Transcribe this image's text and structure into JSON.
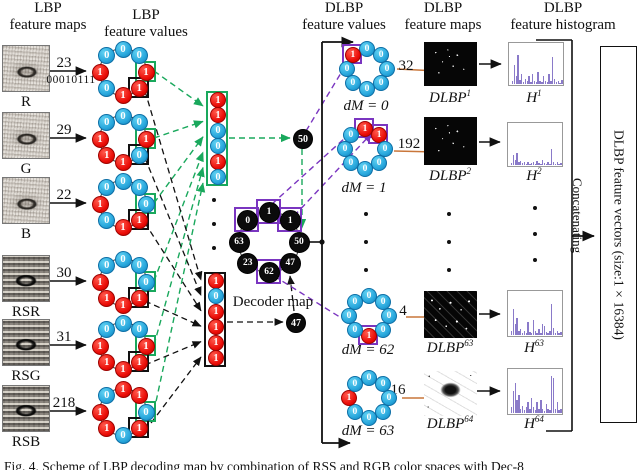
{
  "figure": {
    "headers": [
      {
        "line1": "LBP",
        "line2": "feature maps"
      },
      {
        "line1": "LBP",
        "line2": "feature values"
      },
      {
        "line1": "DLBP",
        "line2": "feature values"
      },
      {
        "line1": "DLBP",
        "line2": "feature maps"
      },
      {
        "line1": "DLBP",
        "line2": "feature histogram"
      }
    ],
    "lbp_rows": [
      {
        "map_label": "R",
        "value": "23",
        "binary": "00010111",
        "bits": [
          {
            "v": "0"
          },
          {
            "v": "0"
          },
          {
            "v": "1",
            "box": "green"
          },
          {
            "v": "1",
            "box": "black"
          },
          {
            "v": "1"
          },
          {
            "v": "0"
          },
          {
            "v": "1"
          },
          {
            "v": "0"
          }
        ]
      },
      {
        "map_label": "G",
        "value": "29",
        "bits": [
          {
            "v": "0"
          },
          {
            "v": "0"
          },
          {
            "v": "1",
            "box": "green"
          },
          {
            "v": "0",
            "box": "black"
          },
          {
            "v": "1"
          },
          {
            "v": "1"
          },
          {
            "v": "1"
          },
          {
            "v": "0"
          }
        ]
      },
      {
        "map_label": "B",
        "value": "22",
        "bits": [
          {
            "v": "0"
          },
          {
            "v": "0"
          },
          {
            "v": "0",
            "box": "green"
          },
          {
            "v": "1",
            "box": "black"
          },
          {
            "v": "1"
          },
          {
            "v": "0"
          },
          {
            "v": "1"
          },
          {
            "v": "0"
          }
        ]
      },
      {
        "map_label": "RSR",
        "value": "30",
        "bits": [
          {
            "v": "0"
          },
          {
            "v": "0"
          },
          {
            "v": "0",
            "box": "green"
          },
          {
            "v": "1",
            "box": "black"
          },
          {
            "v": "1"
          },
          {
            "v": "1"
          },
          {
            "v": "1"
          },
          {
            "v": "0"
          }
        ]
      },
      {
        "map_label": "RSG",
        "value": "31",
        "bits": [
          {
            "v": "0"
          },
          {
            "v": "0"
          },
          {
            "v": "1",
            "box": "green"
          },
          {
            "v": "1",
            "box": "black"
          },
          {
            "v": "1"
          },
          {
            "v": "1"
          },
          {
            "v": "1"
          },
          {
            "v": "0"
          }
        ]
      },
      {
        "map_label": "RSB",
        "value": "218",
        "bits": [
          {
            "v": "1"
          },
          {
            "v": "1"
          },
          {
            "v": "0",
            "box": "green"
          },
          {
            "v": "1",
            "box": "black"
          },
          {
            "v": "0"
          },
          {
            "v": "1"
          },
          {
            "v": "1"
          },
          {
            "v": "0"
          }
        ]
      }
    ],
    "green_column": [
      "1",
      "1",
      "0",
      "0",
      "1",
      "0"
    ],
    "black_column": [
      "1",
      "0",
      "1",
      "1",
      "1",
      "1"
    ],
    "green_decoded_value": "50",
    "black_decoded_value": "47",
    "decoder": {
      "label": "Decoder map",
      "nodes": [
        {
          "v": "1",
          "box": true
        },
        {
          "v": "1",
          "box": true
        },
        {
          "v": "50"
        },
        {
          "v": "47"
        },
        {
          "v": "62",
          "box": true
        },
        {
          "v": "23"
        },
        {
          "v": "63"
        },
        {
          "v": "0",
          "box": true
        }
      ]
    },
    "dlbp_values": [
      {
        "label": "dM = 0",
        "value": "32",
        "bits": [
          {
            "v": "0"
          },
          {
            "v": "0"
          },
          {
            "v": "0"
          },
          {
            "v": "0"
          },
          {
            "v": "0"
          },
          {
            "v": "0"
          },
          {
            "v": "0"
          },
          {
            "v": "1",
            "box": "purple"
          }
        ]
      },
      {
        "label": "dM = 1",
        "value": "192",
        "bits": [
          {
            "v": "1",
            "box": "purple"
          },
          {
            "v": "1",
            "box": "purple"
          },
          {
            "v": "0"
          },
          {
            "v": "0"
          },
          {
            "v": "0"
          },
          {
            "v": "0"
          },
          {
            "v": "0"
          },
          {
            "v": "0"
          }
        ]
      },
      {
        "label": "dM = 62",
        "value": "4",
        "bits": [
          {
            "v": "0"
          },
          {
            "v": "0"
          },
          {
            "v": "0"
          },
          {
            "v": "0"
          },
          {
            "v": "1",
            "box": "purple"
          },
          {
            "v": "0"
          },
          {
            "v": "0"
          },
          {
            "v": "0"
          }
        ]
      },
      {
        "label": "dM = 63",
        "value": "16",
        "bits": [
          {
            "v": "0"
          },
          {
            "v": "0"
          },
          {
            "v": "0"
          },
          {
            "v": "0"
          },
          {
            "v": "0"
          },
          {
            "v": "0"
          },
          {
            "v": "1"
          },
          {
            "v": "0"
          }
        ]
      }
    ],
    "dlbp_maps": [
      {
        "base": "DLBP",
        "sup": "1"
      },
      {
        "base": "DLBP",
        "sup": "2"
      },
      {
        "base": "DLBP",
        "sup": "63"
      },
      {
        "base": "DLBP",
        "sup": "64"
      }
    ],
    "histograms": [
      {
        "base": "H",
        "sup": "1",
        "bars": [
          0.08,
          0.55,
          0.25,
          0.85,
          0.12,
          0.3,
          0.06,
          0.15,
          0.1,
          0.25,
          0.05,
          0.3,
          0.1,
          0.06,
          0.35,
          0.08,
          0.05,
          0.25,
          0.1,
          0.05,
          0.3,
          0.08,
          0.8,
          0.15,
          0.05,
          0.1,
          0.04,
          0.12
        ]
      },
      {
        "base": "H",
        "sup": "2",
        "bars": [
          0.05,
          0.3,
          0.15,
          0.35,
          0.08,
          0.12,
          0.05,
          0.08,
          0.04,
          0.1,
          0.03,
          0.06,
          0.1,
          0.04,
          0.12,
          0.05,
          0.03,
          0.15,
          0.06,
          0.03,
          0.08,
          0.04,
          0.45,
          0.1,
          0.03,
          0.08,
          0.03,
          0.05
        ]
      },
      {
        "base": "H",
        "sup": "63",
        "bars": [
          0.1,
          0.7,
          0.3,
          0.45,
          0.1,
          0.15,
          0.06,
          0.1,
          0.05,
          0.35,
          0.08,
          0.06,
          0.4,
          0.1,
          0.05,
          0.15,
          0.06,
          0.3,
          0.25,
          0.08,
          0.05,
          0.1,
          0.85,
          0.2,
          0.06,
          0.1,
          0.05,
          0.08
        ]
      },
      {
        "base": "H",
        "sup": "64",
        "bars": [
          0.15,
          0.6,
          0.8,
          0.35,
          0.5,
          0.1,
          0.2,
          0.08,
          0.15,
          0.3,
          0.1,
          0.4,
          0.15,
          0.08,
          0.3,
          0.1,
          0.35,
          0.12,
          0.06,
          0.25,
          0.1,
          0.08,
          1.0,
          0.95,
          0.1,
          0.3,
          0.08,
          0.12
        ]
      }
    ],
    "concatenating": "Concatenating",
    "output_box_label": "DLBP feature vectors (size:1×16384)",
    "caption": "Fig. 4. Scheme of LBP decoding map by combination of RSS and RGB color spaces with Dec-8"
  },
  "colors": {
    "bit_zero": "#29a8dd",
    "bit_one": "#ea0b06",
    "green_select": "#19a85c",
    "black_select": "#111111",
    "purple_select": "#7a35c0",
    "orange_arrow": "#c9763a",
    "histogram_bar": "#8a7ac9"
  }
}
